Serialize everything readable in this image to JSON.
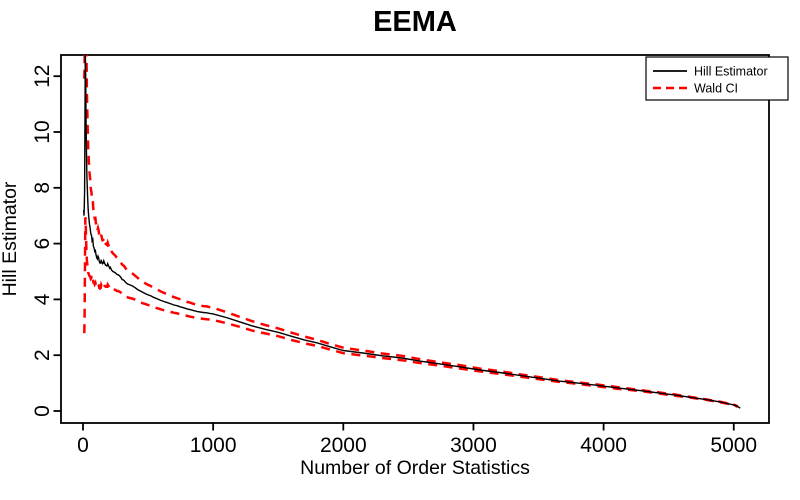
{
  "page": {
    "background": "#ffffff"
  },
  "chart_data": {
    "type": "line",
    "title": "EEMA",
    "xlabel": "Number of Order Statistics",
    "ylabel": "Hill Estimator",
    "xlim": [
      -170,
      5240
    ],
    "ylim": [
      -0.47,
      12.76
    ],
    "xticks": [
      0,
      1000,
      2000,
      3000,
      4000,
      5000
    ],
    "yticks": [
      0,
      2,
      4,
      6,
      8,
      10,
      12
    ],
    "grid": false,
    "legend_position": "top-right",
    "colors": {
      "hill": "#000000",
      "wald_ci": "#ff0000",
      "box": "#000000"
    },
    "series": [
      {
        "name": "Hill Estimator",
        "style": "solid",
        "color": "#000000"
      },
      {
        "name": "Wald CI",
        "style": "dashed",
        "color": "#ff0000"
      }
    ],
    "points_columns": [
      "order_statistics_k",
      "hill_estimate",
      "wald_ci_lower",
      "wald_ci_upper"
    ],
    "points": [
      [
        5,
        7.2,
        null,
        null
      ],
      [
        8,
        7.0,
        null,
        null
      ],
      [
        10,
        7.35,
        2.79,
        11.91
      ],
      [
        12,
        7.9,
        3.43,
        12.37
      ],
      [
        14,
        9.2,
        4.38,
        14.02
      ],
      [
        16,
        11.4,
        5.81,
        16.99
      ],
      [
        18,
        12.9,
        6.94,
        18.86
      ],
      [
        20,
        12.3,
        6.91,
        17.69
      ],
      [
        23,
        10.6,
        6.27,
        14.93
      ],
      [
        26,
        9.4,
        5.79,
        13.01
      ],
      [
        30,
        8.4,
        5.39,
        11.41
      ],
      [
        35,
        7.7,
        5.15,
        10.25
      ],
      [
        40,
        7.2,
        4.97,
        9.43
      ],
      [
        45,
        6.9,
        4.89,
        8.91
      ],
      [
        50,
        6.7,
        4.84,
        8.56
      ],
      [
        55,
        6.55,
        4.81,
        8.29
      ],
      [
        60,
        6.35,
        4.74,
        7.96
      ],
      [
        65,
        6.3,
        4.77,
        7.83
      ],
      [
        70,
        6.1,
        4.67,
        7.53
      ],
      [
        75,
        6.15,
        4.76,
        7.54
      ],
      [
        80,
        5.9,
        4.61,
        7.19
      ],
      [
        85,
        5.85,
        4.61,
        7.09
      ],
      [
        90,
        5.72,
        4.54,
        6.9
      ],
      [
        95,
        5.75,
        4.59,
        6.91
      ],
      [
        100,
        5.6,
        4.5,
        6.7
      ],
      [
        105,
        5.5,
        4.45,
        6.55
      ],
      [
        110,
        5.45,
        4.43,
        6.47
      ],
      [
        115,
        5.55,
        4.54,
        6.56
      ],
      [
        120,
        5.5,
        4.52,
        6.48
      ],
      [
        125,
        5.35,
        4.41,
        6.29
      ],
      [
        130,
        5.3,
        4.39,
        6.21
      ],
      [
        135,
        5.3,
        4.41,
        6.19
      ],
      [
        140,
        5.42,
        4.52,
        6.32
      ],
      [
        145,
        5.33,
        4.46,
        6.2
      ],
      [
        150,
        5.28,
        4.44,
        6.12
      ],
      [
        155,
        5.3,
        4.47,
        6.13
      ],
      [
        160,
        5.38,
        4.55,
        6.21
      ],
      [
        165,
        5.3,
        4.49,
        6.11
      ],
      [
        175,
        5.22,
        4.45,
        5.99
      ],
      [
        185,
        5.2,
        4.45,
        5.95
      ],
      [
        190,
        5.28,
        4.53,
        6.03
      ],
      [
        195,
        5.22,
        4.49,
        5.95
      ],
      [
        205,
        5.12,
        4.42,
        5.82
      ],
      [
        210,
        5.15,
        4.45,
        5.85
      ],
      [
        220,
        5.05,
        4.38,
        5.72
      ],
      [
        230,
        5.0,
        4.35,
        5.65
      ],
      [
        240,
        4.98,
        4.35,
        5.61
      ],
      [
        250,
        4.95,
        4.34,
        5.56
      ],
      [
        260,
        4.9,
        4.3,
        5.5
      ],
      [
        270,
        4.88,
        4.3,
        5.46
      ],
      [
        280,
        4.85,
        4.28,
        5.42
      ],
      [
        290,
        4.8,
        4.25,
        5.35
      ],
      [
        300,
        4.72,
        4.19,
        5.25
      ],
      [
        315,
        4.68,
        4.16,
        5.2
      ],
      [
        330,
        4.6,
        4.1,
        5.1
      ],
      [
        345,
        4.55,
        4.07,
        5.03
      ],
      [
        360,
        4.52,
        4.05,
        4.99
      ],
      [
        380,
        4.48,
        4.03,
        4.93
      ],
      [
        400,
        4.42,
        3.99,
        4.85
      ],
      [
        420,
        4.35,
        3.93,
        4.77
      ],
      [
        440,
        4.3,
        3.9,
        4.7
      ],
      [
        460,
        4.25,
        3.86,
        4.64
      ],
      [
        480,
        4.2,
        3.83,
        4.57
      ],
      [
        500,
        4.16,
        3.8,
        4.52
      ],
      [
        520,
        4.13,
        3.78,
        4.48
      ],
      [
        540,
        4.08,
        3.74,
        4.42
      ],
      [
        560,
        4.04,
        3.7,
        4.38
      ],
      [
        580,
        4.0,
        3.67,
        4.33
      ],
      [
        600,
        3.96,
        3.64,
        4.28
      ],
      [
        625,
        3.92,
        3.61,
        4.23
      ],
      [
        650,
        3.88,
        3.58,
        4.18
      ],
      [
        675,
        3.84,
        3.55,
        4.13
      ],
      [
        700,
        3.8,
        3.52,
        4.08
      ],
      [
        725,
        3.77,
        3.5,
        4.04
      ],
      [
        750,
        3.73,
        3.46,
        4.0
      ],
      [
        775,
        3.7,
        3.44,
        3.96
      ],
      [
        800,
        3.66,
        3.41,
        3.91
      ],
      [
        825,
        3.63,
        3.38,
        3.88
      ],
      [
        850,
        3.6,
        3.36,
        3.84
      ],
      [
        875,
        3.57,
        3.33,
        3.81
      ],
      [
        900,
        3.55,
        3.32,
        3.78
      ],
      [
        925,
        3.53,
        3.3,
        3.76
      ],
      [
        950,
        3.52,
        3.29,
        3.75
      ],
      [
        975,
        3.5,
        3.28,
        3.72
      ],
      [
        1000,
        3.48,
        3.26,
        3.7
      ],
      [
        1100,
        3.35,
        3.15,
        3.55
      ],
      [
        1200,
        3.2,
        3.02,
        3.38
      ],
      [
        1300,
        3.05,
        2.88,
        3.22
      ],
      [
        1400,
        2.93,
        2.78,
        3.08
      ],
      [
        1500,
        2.82,
        2.68,
        2.96
      ],
      [
        1600,
        2.68,
        2.55,
        2.81
      ],
      [
        1700,
        2.55,
        2.43,
        2.67
      ],
      [
        1800,
        2.44,
        2.33,
        2.55
      ],
      [
        1900,
        2.3,
        2.2,
        2.4
      ],
      [
        2000,
        2.17,
        2.07,
        2.27
      ],
      [
        2150,
        2.08,
        1.99,
        2.17
      ],
      [
        2300,
        1.98,
        1.9,
        2.06
      ],
      [
        2450,
        1.9,
        1.82,
        1.98
      ],
      [
        2600,
        1.78,
        1.71,
        1.85
      ],
      [
        2750,
        1.68,
        1.62,
        1.74
      ],
      [
        2900,
        1.58,
        1.52,
        1.64
      ],
      [
        3050,
        1.47,
        1.42,
        1.52
      ],
      [
        3200,
        1.38,
        1.33,
        1.43
      ],
      [
        3350,
        1.28,
        1.24,
        1.32
      ],
      [
        3500,
        1.18,
        1.14,
        1.22
      ],
      [
        3650,
        1.08,
        1.05,
        1.11
      ],
      [
        3800,
        1.0,
        0.97,
        1.03
      ],
      [
        3950,
        0.92,
        0.89,
        0.95
      ],
      [
        4100,
        0.83,
        0.8,
        0.86
      ],
      [
        4250,
        0.75,
        0.73,
        0.77
      ],
      [
        4400,
        0.66,
        0.64,
        0.68
      ],
      [
        4550,
        0.57,
        0.55,
        0.59
      ],
      [
        4700,
        0.47,
        0.46,
        0.48
      ],
      [
        4800,
        0.4,
        0.39,
        0.41
      ],
      [
        4900,
        0.32,
        0.31,
        0.33
      ],
      [
        4950,
        0.27,
        0.26,
        0.28
      ],
      [
        5000,
        0.22,
        0.21,
        0.23
      ],
      [
        5030,
        0.16,
        0.15,
        0.17
      ],
      [
        5050,
        0.1,
        null,
        null
      ]
    ]
  }
}
